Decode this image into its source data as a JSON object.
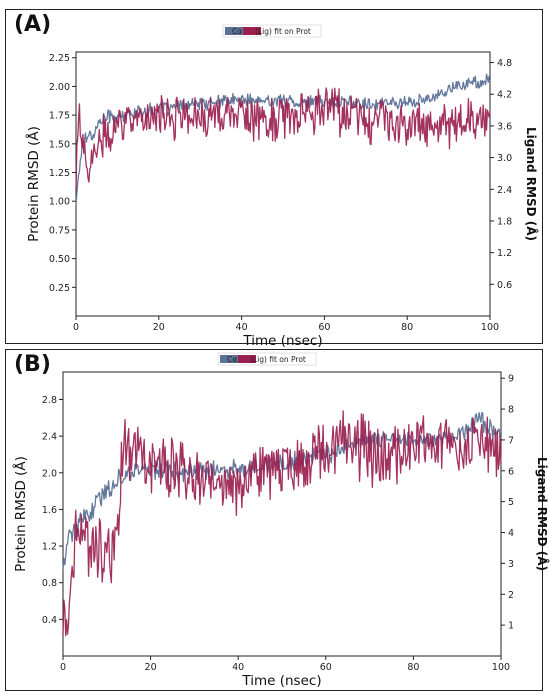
{
  "panels": [
    {
      "label": "(A)",
      "legend": {
        "left_text": "Cα",
        "right_text": "(Lig) fit on Prot"
      },
      "xlabel": "Time (nsec)",
      "ylabel_left": "Protein RMSD (Å)",
      "ylabel_right": "Ligand RMSD (Å)",
      "xticks": [
        "0",
        "20",
        "40",
        "60",
        "80",
        "100"
      ],
      "yticks_left": [
        "0.25",
        "0.50",
        "0.75",
        "1.00",
        "1.25",
        "1.50",
        "1.75",
        "2.00",
        "2.25"
      ],
      "yticks_right": [
        "0.6",
        "1.2",
        "1.8",
        "2.4",
        "3.0",
        "3.6",
        "4.2",
        "4.8"
      ]
    },
    {
      "label": "(B)",
      "legend": {
        "left_text": "Cα",
        "right_text": "(Lig) fit on Prot"
      },
      "xlabel": "Time (nsec)",
      "ylabel_left": "Protein RMSD (Å)",
      "ylabel_right": "Ligand RMSD (Å)",
      "xticks": [
        "0",
        "20",
        "40",
        "60",
        "80",
        "100"
      ],
      "yticks_left": [
        "0.4",
        "0.8",
        "1.2",
        "1.6",
        "2.0",
        "2.4",
        "2.8"
      ],
      "yticks_right": [
        "1",
        "2",
        "3",
        "4",
        "5",
        "6",
        "7",
        "8",
        "9"
      ]
    }
  ],
  "chart_data": [
    {
      "type": "line",
      "xlim": [
        0,
        100
      ],
      "ylim_left": [
        0,
        2.3
      ],
      "ylim_right": [
        0,
        5.0
      ],
      "series_colors": {
        "protein": "#5b7196",
        "ligand": "#9b1f4f"
      },
      "series": [
        {
          "name": "Cα",
          "axis": "left",
          "x": [
            0,
            1,
            2,
            3,
            4,
            5,
            6,
            8,
            10,
            12,
            15,
            20,
            25,
            30,
            35,
            40,
            45,
            50,
            55,
            60,
            65,
            70,
            75,
            80,
            85,
            88,
            90,
            92,
            94,
            96,
            98,
            100
          ],
          "y": [
            1.0,
            1.35,
            1.55,
            1.6,
            1.55,
            1.65,
            1.7,
            1.75,
            1.72,
            1.75,
            1.78,
            1.8,
            1.82,
            1.85,
            1.87,
            1.88,
            1.87,
            1.88,
            1.86,
            1.87,
            1.86,
            1.85,
            1.86,
            1.86,
            1.88,
            1.95,
            1.98,
            2.0,
            2.02,
            2.03,
            2.04,
            2.05
          ]
        },
        {
          "name": "(Lig) fit on Prot",
          "axis": "right",
          "x": [
            0,
            0.5,
            1,
            2,
            3,
            4,
            5,
            6,
            8,
            10,
            15,
            20,
            25,
            30,
            35,
            40,
            45,
            50,
            55,
            60,
            65,
            70,
            75,
            80,
            85,
            90,
            95,
            100
          ],
          "y": [
            2.5,
            3.7,
            3.6,
            3.0,
            2.8,
            2.9,
            3.1,
            3.3,
            3.5,
            3.65,
            3.7,
            3.75,
            3.8,
            3.8,
            3.78,
            3.75,
            3.7,
            3.72,
            3.8,
            3.9,
            3.85,
            3.7,
            3.65,
            3.6,
            3.6,
            3.65,
            3.7,
            3.7
          ]
        }
      ]
    },
    {
      "type": "line",
      "xlim": [
        0,
        100
      ],
      "ylim_left": [
        0,
        3.1
      ],
      "ylim_right": [
        0,
        9.2
      ],
      "series_colors": {
        "protein": "#5b7196",
        "ligand": "#9b1f4f"
      },
      "series": [
        {
          "name": "Cα",
          "axis": "left",
          "x": [
            0,
            1,
            2,
            3,
            4,
            5,
            6,
            8,
            10,
            12,
            14,
            16,
            20,
            25,
            30,
            35,
            40,
            45,
            50,
            55,
            60,
            65,
            70,
            75,
            80,
            85,
            90,
            93,
            95,
            97,
            100
          ],
          "y": [
            1.0,
            1.25,
            1.35,
            1.4,
            1.45,
            1.5,
            1.55,
            1.7,
            1.8,
            1.9,
            1.98,
            2.02,
            2.05,
            2.03,
            2.0,
            2.02,
            2.05,
            2.08,
            2.1,
            2.15,
            2.2,
            2.3,
            2.35,
            2.38,
            2.35,
            2.38,
            2.4,
            2.5,
            2.6,
            2.5,
            2.4
          ]
        },
        {
          "name": "(Lig) fit on Prot",
          "axis": "right",
          "x": [
            0,
            1,
            2,
            3,
            4,
            5,
            6,
            7,
            8,
            9,
            10,
            11,
            12,
            13,
            14,
            16,
            20,
            25,
            30,
            35,
            40,
            45,
            50,
            55,
            58,
            60,
            65,
            70,
            75,
            80,
            85,
            90,
            95,
            100
          ],
          "y": [
            1.0,
            1.5,
            2.5,
            3.8,
            4.0,
            3.8,
            3.7,
            3.5,
            3.5,
            3.3,
            3.2,
            3.5,
            4.0,
            5.5,
            6.8,
            6.7,
            6.2,
            6.1,
            5.8,
            5.6,
            5.7,
            6.0,
            6.2,
            6.3,
            6.5,
            7.0,
            6.9,
            6.6,
            6.5,
            6.8,
            6.9,
            6.7,
            7.0,
            6.6
          ]
        }
      ]
    }
  ]
}
